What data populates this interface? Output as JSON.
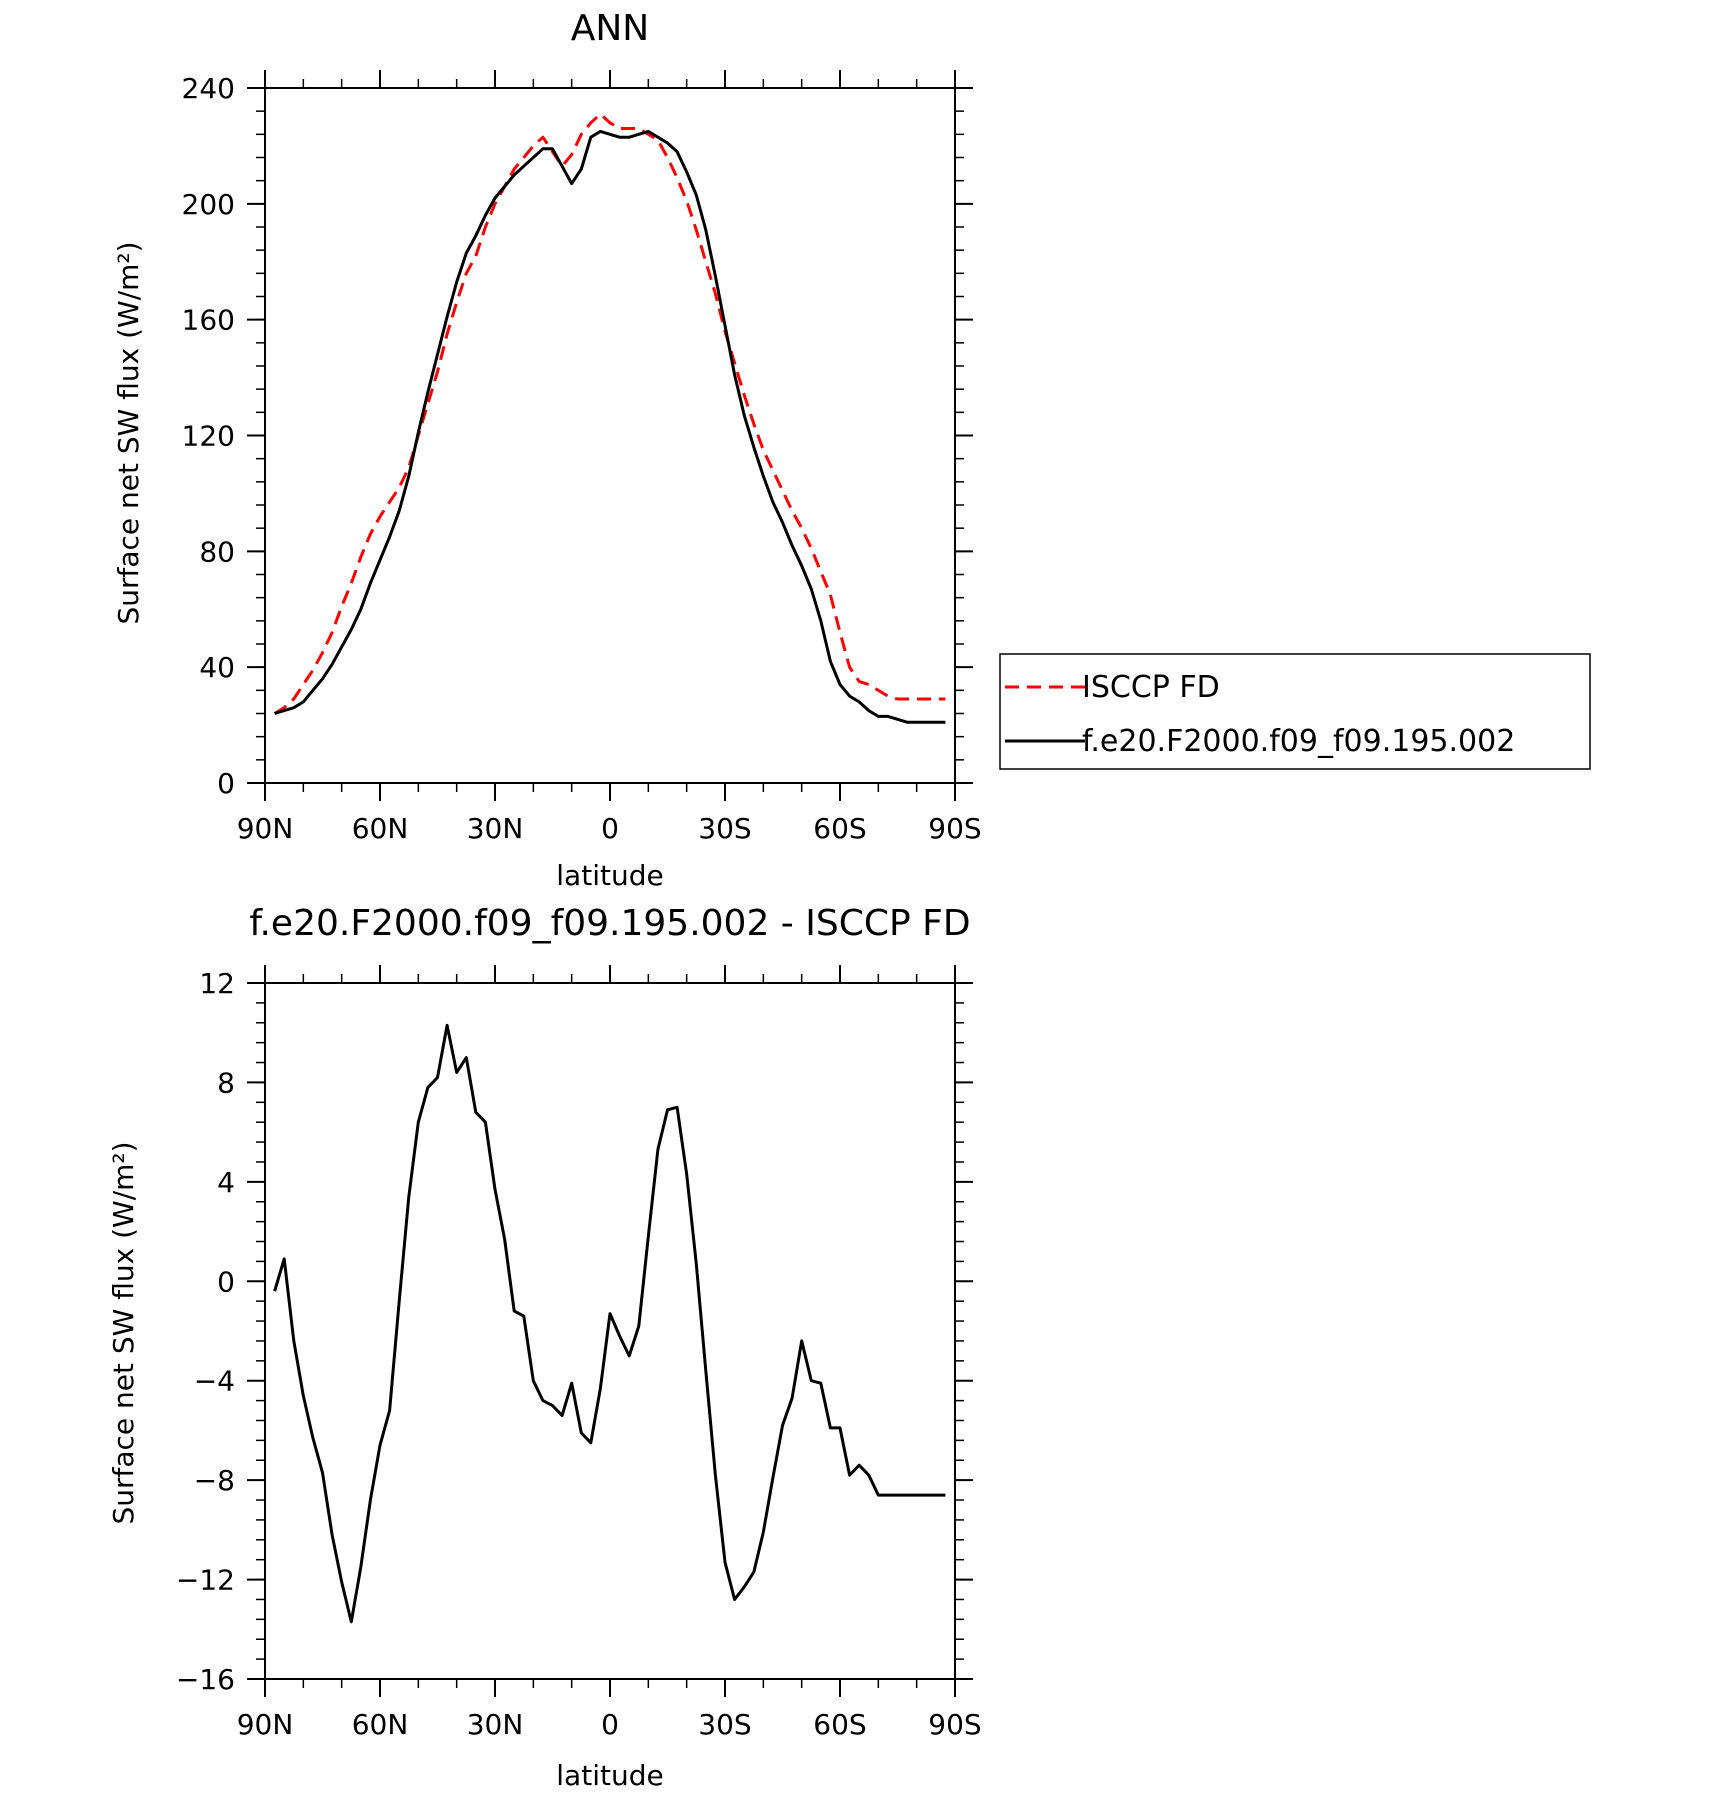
{
  "chart_data": [
    {
      "type": "line",
      "title": "ANN",
      "xlabel": "latitude",
      "ylabel": "Surface net SW flux (W/m²)",
      "xlim": [
        90,
        -90
      ],
      "ylim": [
        0,
        240
      ],
      "x_ticks": [
        90,
        60,
        30,
        0,
        -30,
        -60,
        -90
      ],
      "x_tick_labels": [
        "90N",
        "60N",
        "30N",
        "0",
        "30S",
        "60S",
        "90S"
      ],
      "y_ticks": [
        0,
        40,
        80,
        120,
        160,
        200,
        240
      ],
      "y_tick_labels": [
        "0",
        "40",
        "80",
        "120",
        "160",
        "200",
        "240"
      ],
      "legend_position": "right",
      "grid": false,
      "series": [
        {
          "name": "ISCCP FD",
          "color": "#ff0000",
          "dash": "dashed",
          "x": [
            87.5,
            85,
            82.5,
            80,
            77.5,
            75,
            72.5,
            70,
            67.5,
            65,
            62.5,
            60,
            57.5,
            55,
            52.5,
            50,
            47.5,
            45,
            42.5,
            40,
            37.5,
            35,
            32.5,
            30,
            27.5,
            25,
            22.5,
            20,
            17.5,
            15,
            12.5,
            10,
            7.5,
            5,
            2.5,
            0,
            -2.5,
            -5,
            -7.5,
            -10,
            -12.5,
            -15,
            -17.5,
            -20,
            -22.5,
            -25,
            -27.5,
            -30,
            -32.5,
            -35,
            -37.5,
            -40,
            -42.5,
            -45,
            -47.5,
            -50,
            -52.5,
            -55,
            -57.5,
            -60,
            -62.5,
            -65,
            -67.5,
            -70,
            -72.5,
            -75,
            -77.5,
            -80,
            -82.5,
            -85,
            -87.5
          ],
          "values": [
            24,
            26,
            29,
            34,
            39,
            45,
            52,
            61,
            69,
            78,
            86,
            92,
            97,
            102,
            109,
            120,
            131,
            142,
            155,
            166,
            176,
            182,
            192,
            200,
            206,
            212,
            216,
            220,
            223,
            218,
            213,
            217,
            224,
            228,
            231,
            228,
            226,
            226,
            226,
            224,
            222,
            216,
            209,
            201,
            191,
            180,
            169,
            156,
            145,
            134,
            124,
            115,
            108,
            101,
            94,
            88,
            81,
            73,
            65,
            52,
            40,
            35,
            34,
            32,
            30,
            29,
            29,
            29,
            29,
            29,
            29
          ]
        },
        {
          "name": "f.e20.F2000.f09_f09.195.002",
          "color": "#000000",
          "dash": "solid",
          "x": [
            87.5,
            85,
            82.5,
            80,
            77.5,
            75,
            72.5,
            70,
            67.5,
            65,
            62.5,
            60,
            57.5,
            55,
            52.5,
            50,
            47.5,
            45,
            42.5,
            40,
            37.5,
            35,
            32.5,
            30,
            27.5,
            25,
            22.5,
            20,
            17.5,
            15,
            12.5,
            10,
            7.5,
            5,
            2.5,
            0,
            -2.5,
            -5,
            -7.5,
            -10,
            -12.5,
            -15,
            -17.5,
            -20,
            -22.5,
            -25,
            -27.5,
            -30,
            -32.5,
            -35,
            -37.5,
            -40,
            -42.5,
            -45,
            -47.5,
            -50,
            -52.5,
            -55,
            -57.5,
            -60,
            -62.5,
            -65,
            -67.5,
            -70,
            -72.5,
            -75,
            -77.5,
            -80,
            -82.5,
            -85,
            -87.5
          ],
          "values": [
            24,
            25,
            26,
            28,
            32,
            36,
            41,
            47,
            53,
            60,
            69,
            77,
            85,
            94,
            106,
            121,
            135,
            148,
            161,
            173,
            183,
            189,
            196,
            202,
            206,
            210,
            213,
            216,
            219,
            219,
            213,
            207,
            212,
            223,
            225,
            224,
            223,
            223,
            224,
            225,
            223,
            221,
            218,
            211,
            203,
            191,
            175,
            158,
            141,
            127,
            116,
            106,
            97,
            90,
            82,
            75,
            67,
            56,
            42,
            34,
            30,
            28,
            25,
            23,
            23,
            22,
            21,
            21,
            21,
            21,
            21
          ]
        }
      ]
    },
    {
      "type": "line",
      "title": "f.e20.F2000.f09_f09.195.002 - ISCCP FD",
      "xlabel": "latitude",
      "ylabel": "Surface net SW flux (W/m²)",
      "xlim": [
        90,
        -90
      ],
      "ylim": [
        -16,
        12
      ],
      "x_ticks": [
        90,
        60,
        30,
        0,
        -30,
        -60,
        -90
      ],
      "x_tick_labels": [
        "90N",
        "60N",
        "30N",
        "0",
        "30S",
        "60S",
        "90S"
      ],
      "y_ticks": [
        -16,
        -12,
        -8,
        -4,
        0,
        4,
        8,
        12
      ],
      "y_tick_labels": [
        "−16",
        "−12",
        "−8",
        "−4",
        "0",
        "4",
        "8",
        "12"
      ],
      "grid": false,
      "series": [
        {
          "color": "#000000",
          "dash": "solid",
          "x": [
            87.5,
            85,
            82.5,
            80,
            77.5,
            75,
            72.5,
            70,
            67.5,
            65,
            62.5,
            60,
            57.5,
            55,
            52.5,
            50,
            47.5,
            45,
            42.5,
            40,
            37.5,
            35,
            32.5,
            30,
            27.5,
            25,
            22.5,
            20,
            17.5,
            15,
            12.5,
            10,
            7.5,
            5,
            2.5,
            0,
            -2.5,
            -5,
            -7.5,
            -10,
            -12.5,
            -15,
            -17.5,
            -20,
            -22.5,
            -25,
            -27.5,
            -30,
            -32.5,
            -35,
            -37.5,
            -40,
            -42.5,
            -45,
            -47.5,
            -50,
            -52.5,
            -55,
            -57.5,
            -60,
            -62.5,
            -65,
            -67.5,
            -70,
            -72.5,
            -75,
            -77.5,
            -80,
            -82.5,
            -85,
            -87.5
          ],
          "values": [
            -0.4,
            0.9,
            -2.4,
            -4.6,
            -6.3,
            -7.7,
            -10.2,
            -12.1,
            -13.7,
            -11.5,
            -8.8,
            -6.6,
            -5.2,
            -0.8,
            3.4,
            6.4,
            7.8,
            8.2,
            10.3,
            8.4,
            9.0,
            6.8,
            6.4,
            3.7,
            1.7,
            -1.2,
            -1.4,
            -4.0,
            -4.8,
            -5.0,
            -5.4,
            -4.1,
            -6.1,
            -6.5,
            -4.3,
            -1.3,
            -2.2,
            -3.0,
            -1.8,
            1.8,
            5.3,
            6.9,
            7.0,
            4.3,
            0.7,
            -3.6,
            -7.8,
            -11.3,
            -12.8,
            -12.3,
            -11.7,
            -10.1,
            -7.9,
            -5.8,
            -4.7,
            -2.4,
            -4.0,
            -4.1,
            -5.9,
            -5.9,
            -7.8,
            -7.4,
            -7.8,
            -8.6,
            -8.6,
            -8.6,
            -8.6,
            -8.6,
            -8.6,
            -8.6,
            -8.6
          ]
        }
      ]
    }
  ]
}
